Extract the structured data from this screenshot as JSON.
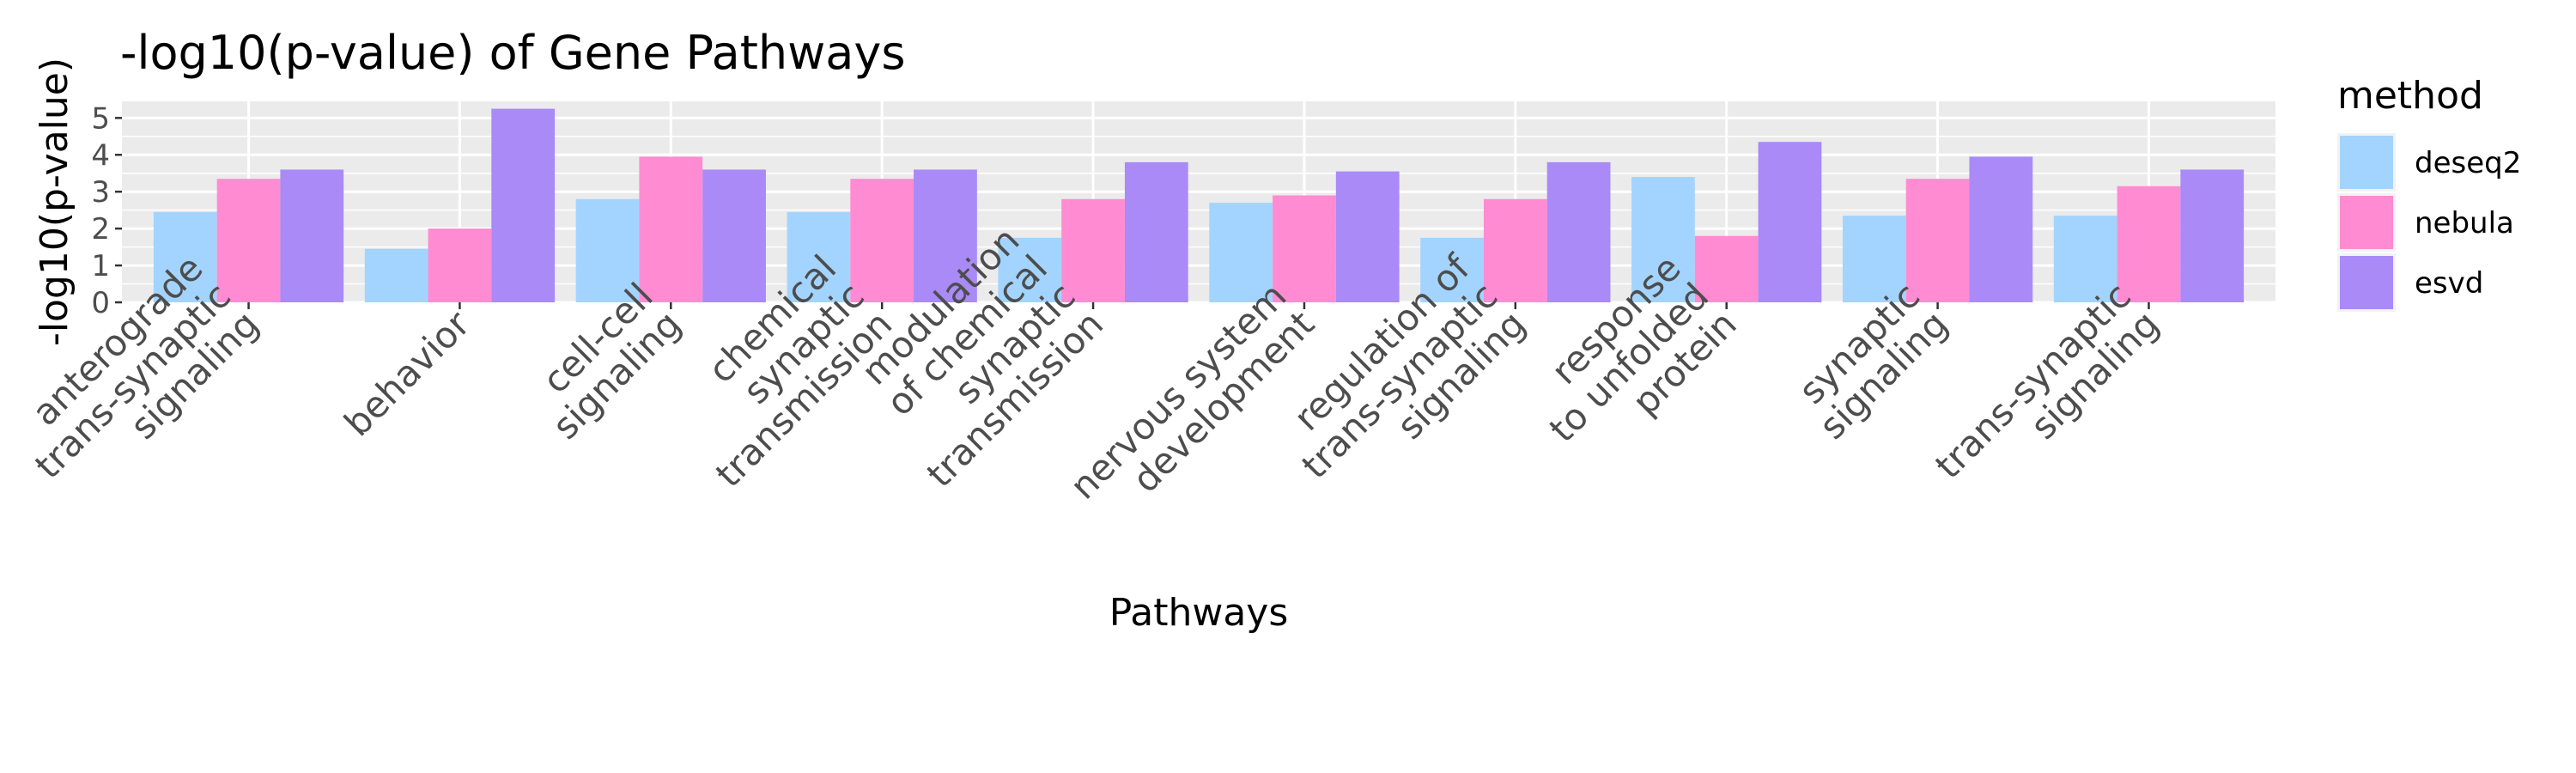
{
  "chart_data": {
    "type": "bar",
    "title": "-log10(p-value) of Gene Pathways",
    "xlabel": "Pathways",
    "ylabel": "-log10(p-value)",
    "ylim": [
      0,
      5.45
    ],
    "yticks": [
      0,
      1,
      2,
      3,
      4,
      5
    ],
    "grid": true,
    "legend_position": "right",
    "legend_title": "method",
    "categories": [
      [
        "anterograde",
        "trans-synaptic",
        "signaling"
      ],
      [
        "behavior"
      ],
      [
        "cell-cell",
        "signaling"
      ],
      [
        "chemical",
        "synaptic",
        "transmission"
      ],
      [
        "modulation",
        "of chemical",
        "synaptic",
        "transmission"
      ],
      [
        "nervous system",
        "development"
      ],
      [
        "regulation of",
        "trans-synaptic",
        "signaling"
      ],
      [
        "response",
        "to unfolded",
        "protein"
      ],
      [
        "synaptic",
        "signaling"
      ],
      [
        "trans-synaptic",
        "signaling"
      ]
    ],
    "series": [
      {
        "name": "deseq2",
        "color": "#A3D4FF",
        "values": [
          2.45,
          1.45,
          2.8,
          2.45,
          1.75,
          2.7,
          1.75,
          3.4,
          2.35,
          2.35
        ]
      },
      {
        "name": "nebula",
        "color": "#FF8CD2",
        "values": [
          3.35,
          2.0,
          3.95,
          3.35,
          2.8,
          2.9,
          2.8,
          1.8,
          3.35,
          3.15
        ]
      },
      {
        "name": "esvd",
        "color": "#A98AF7",
        "values": [
          3.6,
          5.25,
          3.6,
          3.6,
          3.8,
          3.55,
          3.8,
          4.35,
          3.95,
          3.6
        ]
      }
    ]
  }
}
